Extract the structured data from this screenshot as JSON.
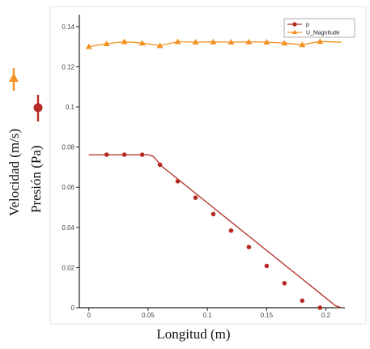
{
  "chart_data": {
    "type": "line",
    "xlabel": "Longitud (m)",
    "ylabel_series": [
      "Velocidad (m/s)",
      "Presión (Pa)"
    ],
    "xlim": [
      -0.008,
      0.216
    ],
    "ylim": [
      0,
      0.146
    ],
    "x_ticks": [
      {
        "value": 0,
        "label": "0"
      },
      {
        "value": 0.05,
        "label": "0.05"
      },
      {
        "value": 0.1,
        "label": "0.1"
      },
      {
        "value": 0.15,
        "label": "0.15"
      },
      {
        "value": 0.2,
        "label": "0.2"
      }
    ],
    "y_ticks": [
      {
        "value": 0,
        "label": "0"
      },
      {
        "value": 0.02,
        "label": "0.02"
      },
      {
        "value": 0.04,
        "label": "0.04"
      },
      {
        "value": 0.06,
        "label": "0.06"
      },
      {
        "value": 0.08,
        "label": "0.08"
      },
      {
        "value": 0.1,
        "label": "0.1"
      },
      {
        "value": 0.12,
        "label": "0.12"
      },
      {
        "value": 0.14,
        "label": "0.14"
      }
    ],
    "legend_position": "top-right",
    "series": [
      {
        "name": "p",
        "color": "#b52a25",
        "marker": "circle",
        "line": [
          [
            0,
            0.0762
          ],
          [
            0.05,
            0.0762
          ],
          [
            0.054,
            0.0755
          ],
          [
            0.057,
            0.0737
          ],
          [
            0.06,
            0.0712
          ],
          [
            0.208,
            0.001
          ],
          [
            0.213,
            0.0
          ]
        ],
        "points": [
          [
            0.015,
            0.0762
          ],
          [
            0.03,
            0.0762
          ],
          [
            0.045,
            0.0762
          ],
          [
            0.06,
            0.0712
          ],
          [
            0.075,
            0.063
          ],
          [
            0.09,
            0.0548
          ],
          [
            0.105,
            0.0466
          ],
          [
            0.12,
            0.0384
          ],
          [
            0.135,
            0.0302
          ],
          [
            0.15,
            0.0208
          ],
          [
            0.165,
            0.0122
          ],
          [
            0.18,
            0.0035
          ],
          [
            0.195,
            0.0
          ]
        ]
      },
      {
        "name": "U_Magnitude",
        "color": "#f39222",
        "marker": "triangle",
        "line": [
          [
            0,
            0.13
          ],
          [
            0.015,
            0.1315
          ],
          [
            0.03,
            0.1325
          ],
          [
            0.045,
            0.1318
          ],
          [
            0.06,
            0.1305
          ],
          [
            0.075,
            0.1325
          ],
          [
            0.09,
            0.1323
          ],
          [
            0.105,
            0.1324
          ],
          [
            0.12,
            0.1323
          ],
          [
            0.135,
            0.1324
          ],
          [
            0.15,
            0.1323
          ],
          [
            0.165,
            0.1318
          ],
          [
            0.18,
            0.131
          ],
          [
            0.195,
            0.1326
          ],
          [
            0.213,
            0.1322
          ]
        ],
        "points": [
          [
            0,
            0.13
          ],
          [
            0.015,
            0.1315
          ],
          [
            0.03,
            0.1325
          ],
          [
            0.045,
            0.1318
          ],
          [
            0.06,
            0.1305
          ],
          [
            0.075,
            0.1325
          ],
          [
            0.09,
            0.1323
          ],
          [
            0.105,
            0.1324
          ],
          [
            0.12,
            0.1323
          ],
          [
            0.135,
            0.1324
          ],
          [
            0.15,
            0.1323
          ],
          [
            0.165,
            0.1318
          ],
          [
            0.18,
            0.131
          ],
          [
            0.195,
            0.1326
          ]
        ]
      }
    ]
  }
}
